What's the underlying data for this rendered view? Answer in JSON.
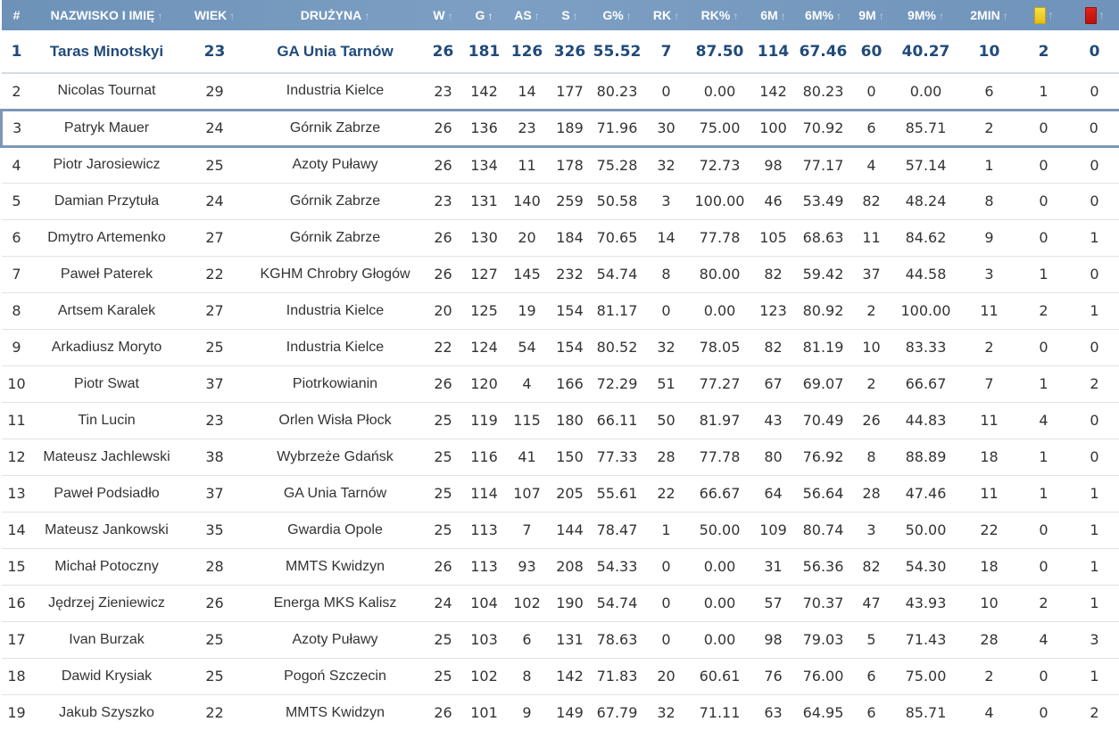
{
  "header": {
    "cols": [
      "#",
      "NAZWISKO I IMIĘ",
      "WIEK",
      "DRUŻYNA",
      "W",
      "G",
      "AS",
      "S",
      "G%",
      "RK",
      "RK%",
      "6M",
      "6M%",
      "9M",
      "9M%",
      "2MIN",
      "",
      ""
    ],
    "sort_arrow": "↑",
    "yellow_card_icon": "yellow-card-icon",
    "red_card_icon": "red-card-icon",
    "colors": {
      "header_bg": "#7497bd",
      "top_row_text": "#214a7a",
      "highlight_border": "#7c98b7",
      "yellow": "#f0d024",
      "red": "#d01a12"
    }
  },
  "rows": [
    [
      "1",
      "Taras Minotskyi",
      "23",
      "GA Unia Tarnów",
      "26",
      "181",
      "126",
      "326",
      "55.52",
      "7",
      "87.50",
      "114",
      "67.46",
      "60",
      "40.27",
      "10",
      "2",
      "0"
    ],
    [
      "2",
      "Nicolas Tournat",
      "29",
      "Industria Kielce",
      "23",
      "142",
      "14",
      "177",
      "80.23",
      "0",
      "0.00",
      "142",
      "80.23",
      "0",
      "0.00",
      "6",
      "1",
      "0"
    ],
    [
      "3",
      "Patryk Mauer",
      "24",
      "Górnik Zabrze",
      "26",
      "136",
      "23",
      "189",
      "71.96",
      "30",
      "75.00",
      "100",
      "70.92",
      "6",
      "85.71",
      "2",
      "0",
      "0"
    ],
    [
      "4",
      "Piotr Jarosiewicz",
      "25",
      "Azoty Puławy",
      "26",
      "134",
      "11",
      "178",
      "75.28",
      "32",
      "72.73",
      "98",
      "77.17",
      "4",
      "57.14",
      "1",
      "0",
      "0"
    ],
    [
      "5",
      "Damian Przytuła",
      "24",
      "Górnik Zabrze",
      "23",
      "131",
      "140",
      "259",
      "50.58",
      "3",
      "100.00",
      "46",
      "53.49",
      "82",
      "48.24",
      "8",
      "0",
      "0"
    ],
    [
      "6",
      "Dmytro Artemenko",
      "27",
      "Górnik Zabrze",
      "26",
      "130",
      "20",
      "184",
      "70.65",
      "14",
      "77.78",
      "105",
      "68.63",
      "11",
      "84.62",
      "9",
      "0",
      "1"
    ],
    [
      "7",
      "Paweł Paterek",
      "22",
      "KGHM Chrobry Głogów",
      "26",
      "127",
      "145",
      "232",
      "54.74",
      "8",
      "80.00",
      "82",
      "59.42",
      "37",
      "44.58",
      "3",
      "1",
      "0"
    ],
    [
      "8",
      "Artsem Karalek",
      "27",
      "Industria Kielce",
      "20",
      "125",
      "19",
      "154",
      "81.17",
      "0",
      "0.00",
      "123",
      "80.92",
      "2",
      "100.00",
      "11",
      "2",
      "1"
    ],
    [
      "9",
      "Arkadiusz Moryto",
      "25",
      "Industria Kielce",
      "22",
      "124",
      "54",
      "154",
      "80.52",
      "32",
      "78.05",
      "82",
      "81.19",
      "10",
      "83.33",
      "2",
      "0",
      "0"
    ],
    [
      "10",
      "Piotr Swat",
      "37",
      "Piotrkowianin",
      "26",
      "120",
      "4",
      "166",
      "72.29",
      "51",
      "77.27",
      "67",
      "69.07",
      "2",
      "66.67",
      "7",
      "1",
      "2"
    ],
    [
      "11",
      "Tin Lucin",
      "23",
      "Orlen Wisła Płock",
      "25",
      "119",
      "115",
      "180",
      "66.11",
      "50",
      "81.97",
      "43",
      "70.49",
      "26",
      "44.83",
      "11",
      "4",
      "0"
    ],
    [
      "12",
      "Mateusz Jachlewski",
      "38",
      "Wybrzeże Gdańsk",
      "25",
      "116",
      "41",
      "150",
      "77.33",
      "28",
      "77.78",
      "80",
      "76.92",
      "8",
      "88.89",
      "18",
      "1",
      "0"
    ],
    [
      "13",
      "Paweł Podsiadło",
      "37",
      "GA Unia Tarnów",
      "25",
      "114",
      "107",
      "205",
      "55.61",
      "22",
      "66.67",
      "64",
      "56.64",
      "28",
      "47.46",
      "11",
      "1",
      "1"
    ],
    [
      "14",
      "Mateusz Jankowski",
      "35",
      "Gwardia Opole",
      "25",
      "113",
      "7",
      "144",
      "78.47",
      "1",
      "50.00",
      "109",
      "80.74",
      "3",
      "50.00",
      "22",
      "0",
      "1"
    ],
    [
      "15",
      "Michał Potoczny",
      "28",
      "MMTS Kwidzyn",
      "26",
      "113",
      "93",
      "208",
      "54.33",
      "0",
      "0.00",
      "31",
      "56.36",
      "82",
      "54.30",
      "18",
      "0",
      "1"
    ],
    [
      "16",
      "Jędrzej Zieniewicz",
      "26",
      "Energa MKS Kalisz",
      "24",
      "104",
      "102",
      "190",
      "54.74",
      "0",
      "0.00",
      "57",
      "70.37",
      "47",
      "43.93",
      "10",
      "2",
      "1"
    ],
    [
      "17",
      "Ivan Burzak",
      "25",
      "Azoty Puławy",
      "25",
      "103",
      "6",
      "131",
      "78.63",
      "0",
      "0.00",
      "98",
      "79.03",
      "5",
      "71.43",
      "28",
      "4",
      "3"
    ],
    [
      "18",
      "Dawid Krysiak",
      "25",
      "Pogoń Szczecin",
      "25",
      "102",
      "8",
      "142",
      "71.83",
      "20",
      "60.61",
      "76",
      "76.00",
      "6",
      "75.00",
      "2",
      "0",
      "1"
    ],
    [
      "19",
      "Jakub Szyszko",
      "22",
      "MMTS Kwidzyn",
      "26",
      "101",
      "9",
      "149",
      "67.79",
      "32",
      "71.11",
      "63",
      "64.95",
      "6",
      "85.71",
      "4",
      "0",
      "2"
    ]
  ]
}
